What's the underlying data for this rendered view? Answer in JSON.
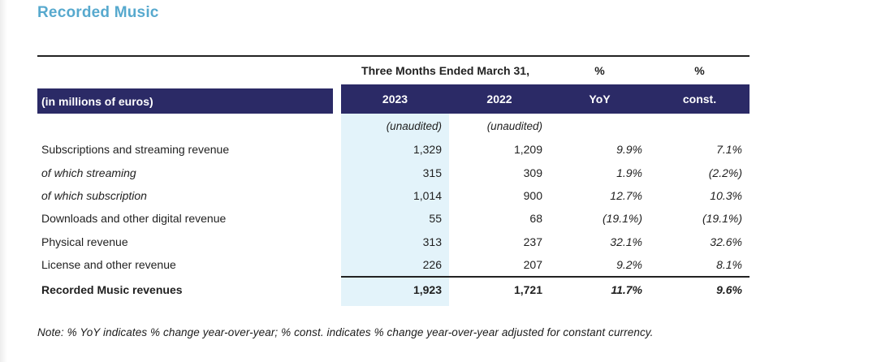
{
  "page": {
    "title": "Recorded Music"
  },
  "table": {
    "unit_label": "(in millions of euros)",
    "span_header": "Three Months Ended March 31,",
    "pct_header_yoy": "%",
    "pct_header_const": "%",
    "col_headers": {
      "y2023": "2023",
      "y2022": "2022",
      "yoy": "YoY",
      "const": "const."
    },
    "unaudited_2023": "(unaudited)",
    "unaudited_2022": "(unaudited)",
    "rows": [
      {
        "label": "Subscriptions and streaming revenue",
        "v2023": "1,329",
        "v2022": "1,209",
        "yoy": "9.9%",
        "const": "7.1%"
      },
      {
        "label": "of which streaming",
        "v2023": "315",
        "v2022": "309",
        "yoy": "1.9%",
        "const": "(2.2%)"
      },
      {
        "label": "of which subscription",
        "v2023": "1,014",
        "v2022": "900",
        "yoy": "12.7%",
        "const": "10.3%"
      },
      {
        "label": "Downloads and other digital revenue",
        "v2023": "55",
        "v2022": "68",
        "yoy": "(19.1%)",
        "const": "(19.1%)"
      },
      {
        "label": "Physical revenue",
        "v2023": "313",
        "v2022": "237",
        "yoy": "32.1%",
        "const": "32.6%"
      },
      {
        "label": "License and other revenue",
        "v2023": "226",
        "v2022": "207",
        "yoy": "9.2%",
        "const": "8.1%"
      }
    ],
    "total": {
      "label": "Recorded Music revenues",
      "v2023": "1,923",
      "v2022": "1,721",
      "yoy": "11.7%",
      "const": "9.6%"
    }
  },
  "note": "Note: % YoY indicates % change year-over-year; % const. indicates % change year-over-year adjusted for constant currency.",
  "colors": {
    "navy": "#2b2a66",
    "highlight": "#e3f3fa",
    "title": "#57a9ce"
  }
}
